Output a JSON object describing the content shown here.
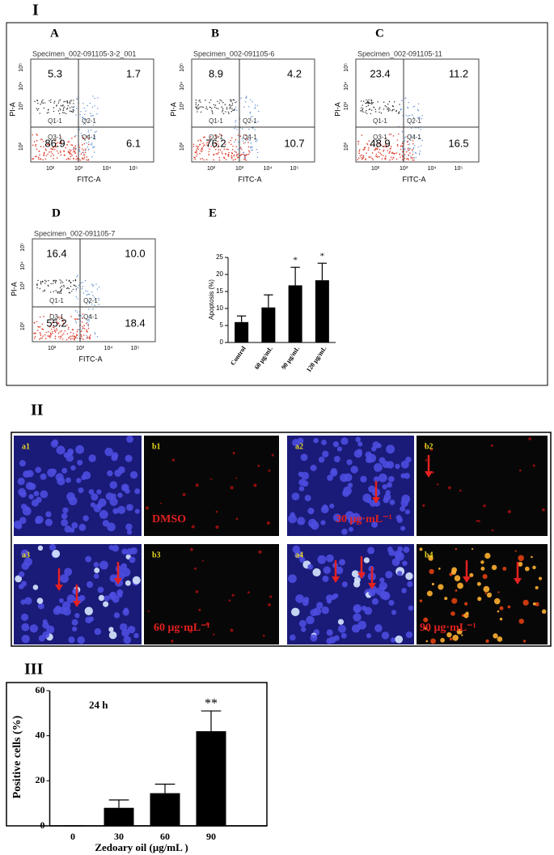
{
  "section_labels": [
    "I",
    "II",
    "III"
  ],
  "flow_axes": {
    "x_label": "FITC-A",
    "y_label": "PI-A",
    "quadrant_names": [
      "Q1-1",
      "Q2-1",
      "Q3-1",
      "Q4-1"
    ],
    "ticks": [
      "10²",
      "10³",
      "10⁴",
      "10⁵"
    ]
  },
  "flow_panels": [
    {
      "letter": "A",
      "specimen": "Specimen_002-091105-3-2_001",
      "quadrant_values": [
        "5.3",
        "1.7",
        "86.9",
        "6.1"
      ]
    },
    {
      "letter": "B",
      "specimen": "Specimen_002-091105-6",
      "quadrant_values": [
        "8.9",
        "4.2",
        "76.2",
        "10.7"
      ]
    },
    {
      "letter": "C",
      "specimen": "Specimen_002-091105-11",
      "quadrant_values": [
        "23.4",
        "11.2",
        "48.9",
        "16.5"
      ]
    },
    {
      "letter": "D",
      "specimen": "Specimen_002-091105-7",
      "quadrant_values": [
        "16.4",
        "10.0",
        "55.2",
        "18.4"
      ]
    }
  ],
  "microscopy": {
    "panels": [
      {
        "label": "a1"
      },
      {
        "label": "b1",
        "caption": "DMSO"
      },
      {
        "label": "a2",
        "caption": "30 μg·mL⁻¹"
      },
      {
        "label": "b2"
      },
      {
        "label": "a3"
      },
      {
        "label": "b3",
        "caption": "60 μg·mL⁻¹"
      },
      {
        "label": "a4"
      },
      {
        "label": "b4",
        "caption": "90 μg·mL⁻¹"
      }
    ]
  },
  "chart_data": [
    {
      "type": "bar",
      "panel_label": "E",
      "y_label": "Apoptosis (%)",
      "categories": [
        "Control",
        "60 μg/mL",
        "90 μg/mL",
        "120 μg/mL"
      ],
      "values": [
        6,
        10.3,
        16.8,
        18.3
      ],
      "errors": [
        1.8,
        3.7,
        5.3,
        5
      ],
      "significance": [
        null,
        null,
        "*",
        "*"
      ],
      "color": "#000000",
      "ylim": [
        0,
        25
      ],
      "yticks": [
        0,
        5,
        10,
        15,
        20,
        25
      ]
    },
    {
      "type": "bar",
      "annotation": "24 h",
      "y_label": "Positive cells (%)",
      "x_label": "Zedoary oil (μg/mL )",
      "categories": [
        "0",
        "30",
        "60",
        "90"
      ],
      "values": [
        0,
        8,
        14.5,
        42
      ],
      "errors": [
        0,
        3.5,
        4,
        9
      ],
      "significance": [
        null,
        null,
        null,
        "**"
      ],
      "color": "#000000",
      "ylim": [
        0,
        60
      ],
      "yticks": [
        0,
        20,
        40,
        60
      ]
    }
  ]
}
